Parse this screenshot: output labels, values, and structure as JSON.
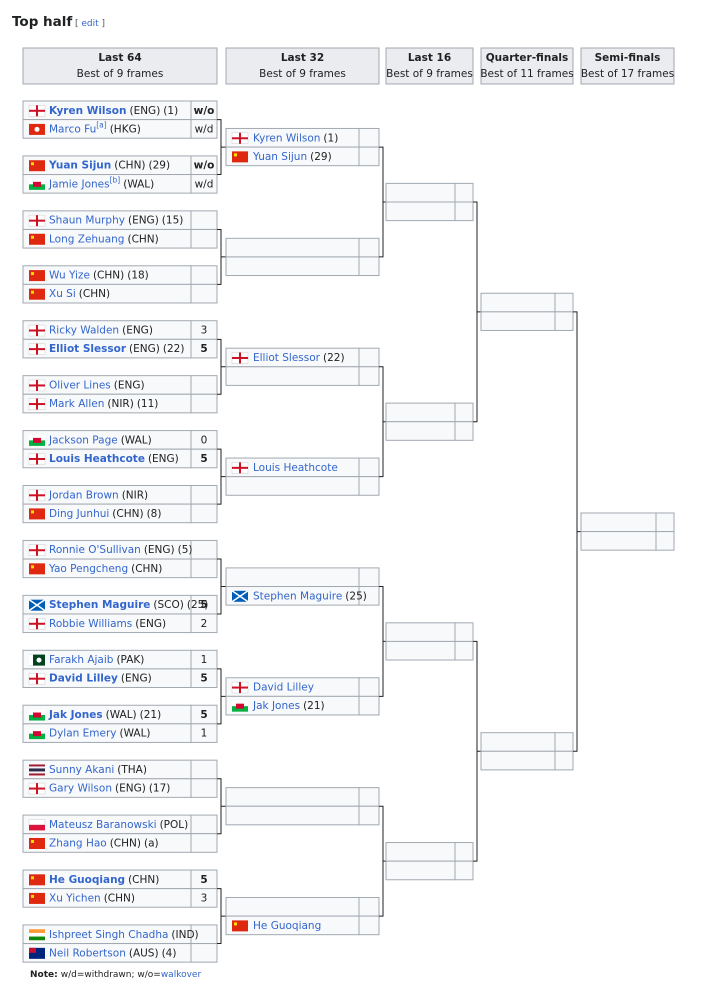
{
  "header": {
    "title": "Top half",
    "edit": "edit"
  },
  "rounds": [
    {
      "name": "Last 64",
      "format": "Best of 9 frames"
    },
    {
      "name": "Last 32",
      "format": "Best of 9 frames"
    },
    {
      "name": "Last 16",
      "format": "Best of 9 frames"
    },
    {
      "name": "Quarter-finals",
      "format": "Best of 11 frames"
    },
    {
      "name": "Semi-finals",
      "format": "Best of 17 frames"
    }
  ],
  "last64": [
    [
      {
        "name": "Kyren Wilson",
        "nation": "(ENG)",
        "seed": "(1)",
        "score": "w/o",
        "bold": true
      },
      {
        "name": "Marco Fu",
        "nation": "(HKG)",
        "footnote": "[a]",
        "score": "w/d"
      }
    ],
    [
      {
        "name": "Yuan Sijun",
        "nation": "(CHN)",
        "seed": "(29)",
        "score": "w/o",
        "bold": true
      },
      {
        "name": "Jamie Jones",
        "nation": "(WAL)",
        "footnote": "[b]",
        "score": "w/d"
      }
    ],
    [
      {
        "name": "Shaun Murphy",
        "nation": "(ENG)",
        "seed": "(15)"
      },
      {
        "name": "Long Zehuang",
        "nation": "(CHN)"
      }
    ],
    [
      {
        "name": "Wu Yize",
        "nation": "(CHN)",
        "seed": "(18)"
      },
      {
        "name": "Xu Si",
        "nation": "(CHN)"
      }
    ],
    [
      {
        "name": "Ricky Walden",
        "nation": "(ENG)",
        "score": 3
      },
      {
        "name": "Elliot Slessor",
        "nation": "(ENG)",
        "seed": "(22)",
        "score": 5,
        "bold": true
      }
    ],
    [
      {
        "name": "Oliver Lines",
        "nation": "(ENG)"
      },
      {
        "name": "Mark Allen",
        "nation": "(NIR)",
        "seed": "(11)"
      }
    ],
    [
      {
        "name": "Jackson Page",
        "nation": "(WAL)",
        "score": 0
      },
      {
        "name": "Louis Heathcote",
        "nation": "(ENG)",
        "score": 5,
        "bold": true
      }
    ],
    [
      {
        "name": "Jordan Brown",
        "nation": "(NIR)"
      },
      {
        "name": "Ding Junhui",
        "nation": "(CHN)",
        "seed": "(8)"
      }
    ],
    [
      {
        "name": "Ronnie O'Sullivan",
        "nation": "(ENG)",
        "seed": "(5)"
      },
      {
        "name": "Yao Pengcheng",
        "nation": "(CHN)"
      }
    ],
    [
      {
        "name": "Stephen Maguire",
        "nation": "(SCO)",
        "seed": "(25)",
        "score": 5,
        "bold": true
      },
      {
        "name": "Robbie Williams",
        "nation": "(ENG)",
        "score": 2
      }
    ],
    [
      {
        "name": "Farakh Ajaib",
        "nation": "(PAK)",
        "score": 1
      },
      {
        "name": "David Lilley",
        "nation": "(ENG)",
        "score": 5,
        "bold": true
      }
    ],
    [
      {
        "name": "Jak Jones",
        "nation": "(WAL)",
        "seed": "(21)",
        "score": 5,
        "bold": true
      },
      {
        "name": "Dylan Emery",
        "nation": "(WAL)",
        "score": 1
      }
    ],
    [
      {
        "name": "Sunny Akani",
        "nation": "(THA)"
      },
      {
        "name": "Gary Wilson",
        "nation": "(ENG)",
        "seed": "(17)"
      }
    ],
    [
      {
        "name": "Mateusz Baranowski",
        "nation": "(POL)"
      },
      {
        "name": "Zhang Hao",
        "nation": "(CHN)",
        "tag": "(a)"
      }
    ],
    [
      {
        "name": "He Guoqiang",
        "nation": "(CHN)",
        "score": 5,
        "bold": true
      },
      {
        "name": "Xu Yichen",
        "nation": "(CHN)",
        "score": 3
      }
    ],
    [
      {
        "name": "Ishpreet Singh Chadha",
        "nation": "(IND)"
      },
      {
        "name": "Neil Robertson",
        "nation": "(AUS)",
        "seed": "(4)"
      }
    ]
  ],
  "last32": [
    [
      {
        "name": "Kyren Wilson",
        "seed": "(1)"
      },
      {
        "name": "Yuan Sijun",
        "seed": "(29)"
      }
    ],
    [
      null,
      null
    ],
    [
      {
        "name": "Elliot Slessor",
        "seed": "(22)"
      },
      null
    ],
    [
      {
        "name": "Louis Heathcote"
      },
      null
    ],
    [
      null,
      {
        "name": "Stephen Maguire",
        "seed": "(25)"
      }
    ],
    [
      {
        "name": "David Lilley"
      },
      {
        "name": "Jak Jones",
        "seed": "(21)"
      }
    ],
    [
      null,
      null
    ],
    [
      null,
      {
        "name": "He Guoqiang"
      }
    ]
  ],
  "note": {
    "label": "Note:",
    "text": "w/d=withdrawn; w/o=",
    "link": "walkover"
  }
}
